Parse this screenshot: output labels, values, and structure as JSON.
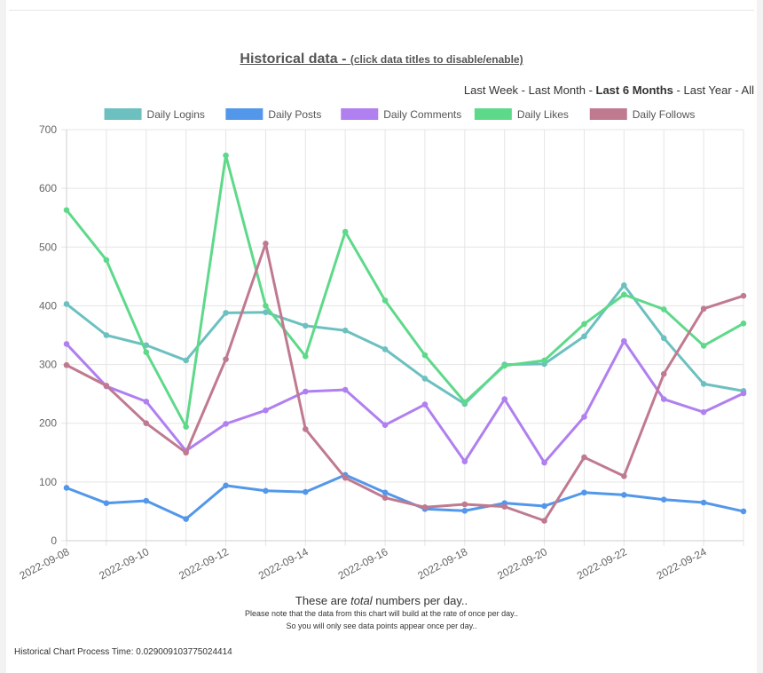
{
  "header": {
    "title_main": "Historical data - ",
    "title_hint": "(click data titles to disable/enable)"
  },
  "ranges": {
    "items": [
      {
        "label": "Last Week",
        "active": false
      },
      {
        "label": "Last Month",
        "active": false
      },
      {
        "label": "Last 6 Months",
        "active": true
      },
      {
        "label": "Last Year",
        "active": false
      },
      {
        "label": "All",
        "active": false
      }
    ],
    "separator": " - "
  },
  "caption": {
    "before": "These are ",
    "emph": "total",
    "after": " numbers per day.."
  },
  "notes": {
    "line1": "Please note that the data from this chart will build at the rate of once per day..",
    "line2": "So you will only see data points appear once per day.."
  },
  "footer": {
    "process_time": "Historical Chart Process Time: 0.029009103775024414"
  },
  "chart_data": {
    "type": "line",
    "title": "",
    "xlabel": "",
    "ylabel": "",
    "x": [
      "2022-09-08",
      "2022-09-09",
      "2022-09-10",
      "2022-09-11",
      "2022-09-12",
      "2022-09-13",
      "2022-09-14",
      "2022-09-15",
      "2022-09-16",
      "2022-09-17",
      "2022-09-18",
      "2022-09-19",
      "2022-09-20",
      "2022-09-21",
      "2022-09-22",
      "2022-09-23",
      "2022-09-24",
      "2022-09-25"
    ],
    "x_tick_labels": [
      "2022-09-08",
      "2022-09-10",
      "2022-09-12",
      "2022-09-14",
      "2022-09-16",
      "2022-09-18",
      "2022-09-20",
      "2022-09-22",
      "2022-09-24"
    ],
    "ylim": [
      0,
      700
    ],
    "y_ticks": [
      0,
      100,
      200,
      300,
      400,
      500,
      600,
      700
    ],
    "grid": true,
    "legend_position": "top",
    "series": [
      {
        "name": "Daily Logins",
        "color": "#6cc0c0",
        "values": [
          403,
          350,
          333,
          307,
          388,
          389,
          366,
          358,
          326,
          276,
          233,
          300,
          301,
          348,
          435,
          345,
          267,
          255
        ]
      },
      {
        "name": "Daily Posts",
        "color": "#5397ea",
        "values": [
          90,
          64,
          68,
          37,
          94,
          85,
          83,
          112,
          82,
          54,
          51,
          64,
          59,
          82,
          78,
          70,
          65,
          50
        ]
      },
      {
        "name": "Daily Comments",
        "color": "#b07ff0",
        "values": [
          335,
          263,
          237,
          153,
          199,
          222,
          254,
          257,
          197,
          232,
          135,
          241,
          133,
          211,
          340,
          241,
          219,
          251
        ]
      },
      {
        "name": "Daily Likes",
        "color": "#5ed98a",
        "values": [
          563,
          478,
          321,
          194,
          656,
          400,
          314,
          526,
          409,
          316,
          236,
          298,
          307,
          369,
          419,
          394,
          332,
          370
        ]
      },
      {
        "name": "Daily Follows",
        "color": "#c07a90",
        "values": [
          299,
          264,
          200,
          150,
          309,
          506,
          190,
          107,
          73,
          57,
          62,
          58,
          34,
          142,
          110,
          284,
          395,
          417
        ]
      }
    ]
  }
}
